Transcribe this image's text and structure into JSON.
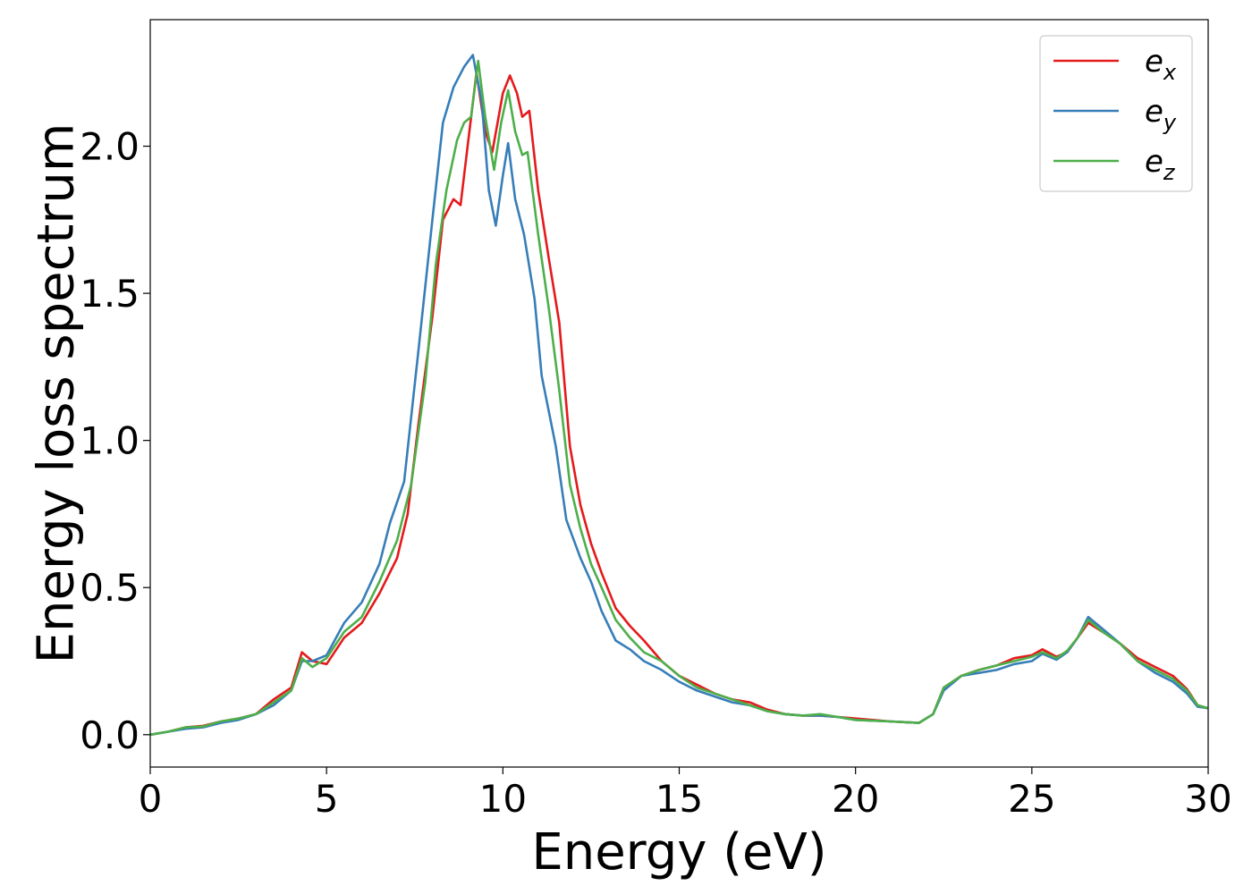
{
  "chart_data": {
    "type": "line",
    "title": "",
    "xlabel": "Energy (eV)",
    "ylabel": "Energy loss spectrum",
    "xlim": [
      0,
      30
    ],
    "ylim": [
      -0.11,
      2.43
    ],
    "xticks": [
      0,
      5,
      10,
      15,
      20,
      25,
      30
    ],
    "xtick_labels": [
      "0",
      "5",
      "10",
      "15",
      "20",
      "25",
      "30"
    ],
    "yticks": [
      0.0,
      0.5,
      1.0,
      1.5,
      2.0
    ],
    "ytick_labels": [
      "0.0",
      "0.5",
      "1.0",
      "1.5",
      "2.0"
    ],
    "grid": false,
    "legend_position": "top-right",
    "series": [
      {
        "name": "e_x",
        "legend_base": "e",
        "legend_sub": "x",
        "color": "#e41a1c",
        "points": [
          [
            0,
            0
          ],
          [
            0.5,
            0.01
          ],
          [
            1,
            0.025
          ],
          [
            1.5,
            0.03
          ],
          [
            2,
            0.045
          ],
          [
            2.5,
            0.055
          ],
          [
            3,
            0.07
          ],
          [
            3.5,
            0.12
          ],
          [
            4,
            0.16
          ],
          [
            4.3,
            0.28
          ],
          [
            4.6,
            0.25
          ],
          [
            5,
            0.24
          ],
          [
            5.5,
            0.33
          ],
          [
            6,
            0.38
          ],
          [
            6.5,
            0.48
          ],
          [
            7,
            0.6
          ],
          [
            7.3,
            0.75
          ],
          [
            7.6,
            1.05
          ],
          [
            8,
            1.42
          ],
          [
            8.3,
            1.75
          ],
          [
            8.6,
            1.82
          ],
          [
            8.8,
            1.8
          ],
          [
            9.0,
            2.0
          ],
          [
            9.25,
            2.25
          ],
          [
            9.5,
            2.05
          ],
          [
            9.7,
            1.98
          ],
          [
            10.0,
            2.18
          ],
          [
            10.2,
            2.24
          ],
          [
            10.4,
            2.18
          ],
          [
            10.55,
            2.1
          ],
          [
            10.75,
            2.12
          ],
          [
            11.0,
            1.85
          ],
          [
            11.3,
            1.62
          ],
          [
            11.6,
            1.4
          ],
          [
            11.9,
            0.98
          ],
          [
            12.2,
            0.78
          ],
          [
            12.5,
            0.65
          ],
          [
            12.8,
            0.55
          ],
          [
            13.2,
            0.43
          ],
          [
            13.6,
            0.37
          ],
          [
            14,
            0.32
          ],
          [
            14.5,
            0.25
          ],
          [
            15,
            0.2
          ],
          [
            15.5,
            0.17
          ],
          [
            16,
            0.14
          ],
          [
            16.5,
            0.12
          ],
          [
            17,
            0.11
          ],
          [
            17.5,
            0.085
          ],
          [
            18,
            0.07
          ],
          [
            18.5,
            0.065
          ],
          [
            19,
            0.065
          ],
          [
            19.5,
            0.06
          ],
          [
            20,
            0.055
          ],
          [
            21,
            0.045
          ],
          [
            21.8,
            0.04
          ],
          [
            22.2,
            0.07
          ],
          [
            22.5,
            0.16
          ],
          [
            23,
            0.2
          ],
          [
            23.5,
            0.22
          ],
          [
            24,
            0.235
          ],
          [
            24.5,
            0.26
          ],
          [
            25,
            0.27
          ],
          [
            25.3,
            0.29
          ],
          [
            25.7,
            0.265
          ],
          [
            26,
            0.28
          ],
          [
            26.3,
            0.33
          ],
          [
            26.6,
            0.38
          ],
          [
            27,
            0.35
          ],
          [
            27.5,
            0.31
          ],
          [
            28,
            0.26
          ],
          [
            28.5,
            0.23
          ],
          [
            29,
            0.2
          ],
          [
            29.4,
            0.155
          ],
          [
            29.7,
            0.1
          ],
          [
            30,
            0.09
          ]
        ]
      },
      {
        "name": "e_y",
        "legend_base": "e",
        "legend_sub": "y",
        "color": "#377eb8",
        "points": [
          [
            0,
            0
          ],
          [
            0.5,
            0.01
          ],
          [
            1,
            0.02
          ],
          [
            1.5,
            0.025
          ],
          [
            2,
            0.04
          ],
          [
            2.5,
            0.05
          ],
          [
            3,
            0.07
          ],
          [
            3.5,
            0.1
          ],
          [
            4,
            0.15
          ],
          [
            4.3,
            0.25
          ],
          [
            4.6,
            0.25
          ],
          [
            5,
            0.27
          ],
          [
            5.5,
            0.38
          ],
          [
            6,
            0.45
          ],
          [
            6.5,
            0.58
          ],
          [
            6.8,
            0.72
          ],
          [
            7.2,
            0.86
          ],
          [
            7.6,
            1.3
          ],
          [
            8,
            1.75
          ],
          [
            8.3,
            2.08
          ],
          [
            8.6,
            2.2
          ],
          [
            8.9,
            2.27
          ],
          [
            9.15,
            2.31
          ],
          [
            9.4,
            2.15
          ],
          [
            9.6,
            1.85
          ],
          [
            9.8,
            1.73
          ],
          [
            10.0,
            1.9
          ],
          [
            10.15,
            2.01
          ],
          [
            10.35,
            1.82
          ],
          [
            10.6,
            1.7
          ],
          [
            10.9,
            1.48
          ],
          [
            11.1,
            1.22
          ],
          [
            11.5,
            0.98
          ],
          [
            11.8,
            0.73
          ],
          [
            12.2,
            0.6
          ],
          [
            12.5,
            0.52
          ],
          [
            12.8,
            0.42
          ],
          [
            13.2,
            0.32
          ],
          [
            13.6,
            0.29
          ],
          [
            14,
            0.25
          ],
          [
            14.5,
            0.22
          ],
          [
            15,
            0.18
          ],
          [
            15.5,
            0.15
          ],
          [
            16,
            0.13
          ],
          [
            16.5,
            0.11
          ],
          [
            17,
            0.1
          ],
          [
            17.5,
            0.08
          ],
          [
            18,
            0.07
          ],
          [
            18.5,
            0.065
          ],
          [
            19,
            0.065
          ],
          [
            19.5,
            0.06
          ],
          [
            20,
            0.05
          ],
          [
            21,
            0.045
          ],
          [
            21.8,
            0.04
          ],
          [
            22.2,
            0.07
          ],
          [
            22.5,
            0.15
          ],
          [
            23,
            0.2
          ],
          [
            23.5,
            0.21
          ],
          [
            24,
            0.22
          ],
          [
            24.5,
            0.24
          ],
          [
            25,
            0.25
          ],
          [
            25.3,
            0.275
          ],
          [
            25.7,
            0.255
          ],
          [
            26,
            0.28
          ],
          [
            26.3,
            0.33
          ],
          [
            26.6,
            0.4
          ],
          [
            27,
            0.36
          ],
          [
            27.5,
            0.31
          ],
          [
            28,
            0.25
          ],
          [
            28.5,
            0.21
          ],
          [
            29,
            0.18
          ],
          [
            29.4,
            0.14
          ],
          [
            29.7,
            0.095
          ],
          [
            30,
            0.09
          ]
        ]
      },
      {
        "name": "e_z",
        "legend_base": "e",
        "legend_sub": "z",
        "color": "#4daf4a",
        "points": [
          [
            0,
            0
          ],
          [
            0.5,
            0.01
          ],
          [
            1,
            0.025
          ],
          [
            1.5,
            0.028
          ],
          [
            2,
            0.045
          ],
          [
            2.5,
            0.055
          ],
          [
            3,
            0.07
          ],
          [
            3.5,
            0.11
          ],
          [
            4,
            0.15
          ],
          [
            4.3,
            0.26
          ],
          [
            4.6,
            0.23
          ],
          [
            5,
            0.26
          ],
          [
            5.5,
            0.35
          ],
          [
            6,
            0.4
          ],
          [
            6.5,
            0.52
          ],
          [
            7,
            0.66
          ],
          [
            7.4,
            0.85
          ],
          [
            7.8,
            1.2
          ],
          [
            8.1,
            1.6
          ],
          [
            8.4,
            1.85
          ],
          [
            8.7,
            2.02
          ],
          [
            8.9,
            2.08
          ],
          [
            9.1,
            2.1
          ],
          [
            9.3,
            2.29
          ],
          [
            9.5,
            2.1
          ],
          [
            9.75,
            1.92
          ],
          [
            9.95,
            2.08
          ],
          [
            10.15,
            2.19
          ],
          [
            10.35,
            2.05
          ],
          [
            10.55,
            1.97
          ],
          [
            10.7,
            1.98
          ],
          [
            11.0,
            1.7
          ],
          [
            11.3,
            1.45
          ],
          [
            11.6,
            1.17
          ],
          [
            11.9,
            0.85
          ],
          [
            12.2,
            0.7
          ],
          [
            12.5,
            0.58
          ],
          [
            12.8,
            0.5
          ],
          [
            13.2,
            0.39
          ],
          [
            13.6,
            0.33
          ],
          [
            14,
            0.28
          ],
          [
            14.5,
            0.25
          ],
          [
            15,
            0.2
          ],
          [
            15.5,
            0.16
          ],
          [
            16,
            0.14
          ],
          [
            16.5,
            0.12
          ],
          [
            17,
            0.1
          ],
          [
            17.5,
            0.08
          ],
          [
            18,
            0.07
          ],
          [
            18.5,
            0.065
          ],
          [
            19,
            0.07
          ],
          [
            19.5,
            0.06
          ],
          [
            20,
            0.05
          ],
          [
            21,
            0.045
          ],
          [
            21.8,
            0.04
          ],
          [
            22.2,
            0.07
          ],
          [
            22.5,
            0.16
          ],
          [
            23,
            0.2
          ],
          [
            23.5,
            0.22
          ],
          [
            24,
            0.235
          ],
          [
            24.5,
            0.25
          ],
          [
            25,
            0.265
          ],
          [
            25.3,
            0.28
          ],
          [
            25.7,
            0.26
          ],
          [
            26,
            0.285
          ],
          [
            26.3,
            0.33
          ],
          [
            26.6,
            0.39
          ],
          [
            27,
            0.35
          ],
          [
            27.5,
            0.31
          ],
          [
            28,
            0.25
          ],
          [
            28.5,
            0.22
          ],
          [
            29,
            0.19
          ],
          [
            29.4,
            0.15
          ],
          [
            29.7,
            0.1
          ],
          [
            30,
            0.09
          ]
        ]
      }
    ]
  }
}
